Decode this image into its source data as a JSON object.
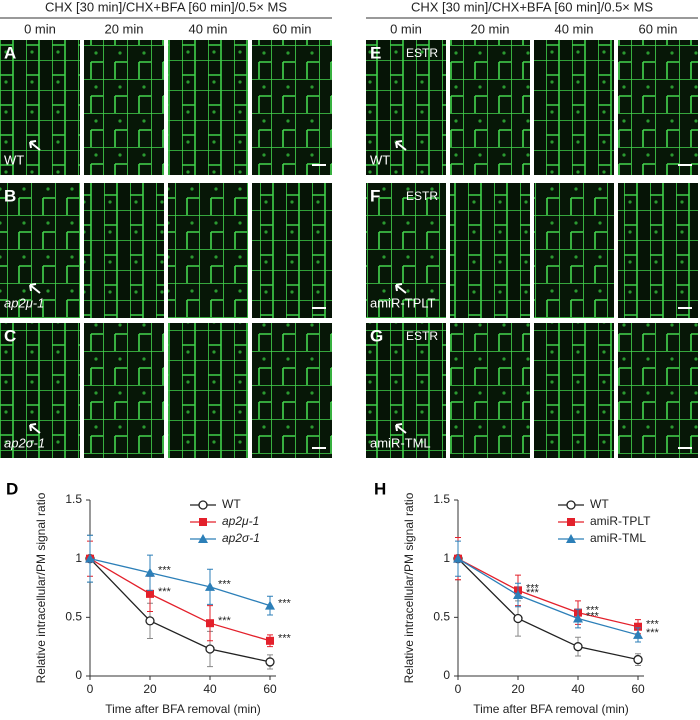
{
  "left": {
    "header": "CHX [30 min]/CHX+BFA [60 min]/0.5× MS",
    "times": [
      "0 min",
      "20 min",
      "40 min",
      "60 min"
    ],
    "panels": [
      {
        "letter": "A",
        "genotype": "WT"
      },
      {
        "letter": "B",
        "genotype": "ap2μ-1"
      },
      {
        "letter": "C",
        "genotype": "ap2σ-1"
      }
    ]
  },
  "right": {
    "header": "CHX [30 min]/CHX+BFA [60 min]/0.5× MS",
    "times": [
      "0 min",
      "20 min",
      "40 min",
      "60 min"
    ],
    "panels": [
      {
        "letter": "E",
        "tag": "ESTR",
        "genotype": "WT"
      },
      {
        "letter": "F",
        "tag": "ESTR",
        "genotype": "amiR-TPLT"
      },
      {
        "letter": "G",
        "tag": "ESTR",
        "genotype": "amiR-TML"
      }
    ]
  },
  "chart_data": [
    {
      "type": "line",
      "panel": "D",
      "x_label": "Time after BFA removal (min)",
      "y_label": "Relative intracellular/PM signal ratio",
      "x": [
        0,
        20,
        40,
        60
      ],
      "xlim": [
        0,
        62
      ],
      "xticks": [
        0,
        20,
        40,
        60
      ],
      "ylim": [
        0,
        1.5
      ],
      "yticks": [
        0,
        0.5,
        1,
        1.5
      ],
      "series": [
        {
          "name": "WT",
          "color": "#222222",
          "marker": "circle",
          "values": [
            1,
            0.47,
            0.23,
            0.12
          ],
          "errors": [
            0.2,
            0.15,
            0.15,
            0.06
          ]
        },
        {
          "name": "ap2μ-1",
          "color": "#e3202b",
          "marker": "square",
          "values": [
            1,
            0.7,
            0.45,
            0.3
          ],
          "errors": [
            0.15,
            0.15,
            0.15,
            0.05
          ],
          "significance": [
            null,
            "***",
            "***",
            "***"
          ]
        },
        {
          "name": "ap2σ-1",
          "color": "#2c7fb8",
          "marker": "triangle",
          "values": [
            1,
            0.88,
            0.76,
            0.6
          ],
          "errors": [
            0.2,
            0.15,
            0.15,
            0.08
          ],
          "significance": [
            null,
            "***",
            "***",
            "***"
          ]
        }
      ]
    },
    {
      "type": "line",
      "panel": "H",
      "x_label": "Time after BFA removal (min)",
      "y_label": "Relative intracellular/PM signal ratio",
      "x": [
        0,
        20,
        40,
        60
      ],
      "xlim": [
        0,
        62
      ],
      "xticks": [
        0,
        20,
        40,
        60
      ],
      "ylim": [
        0,
        1.5
      ],
      "yticks": [
        0,
        0.5,
        1,
        1.5
      ],
      "series": [
        {
          "name": "WT",
          "color": "#222222",
          "marker": "circle",
          "values": [
            1,
            0.49,
            0.25,
            0.14
          ],
          "errors": [
            0.18,
            0.15,
            0.08,
            0.05
          ]
        },
        {
          "name": "amiR-TPLT",
          "color": "#e3202b",
          "marker": "square",
          "values": [
            1,
            0.73,
            0.54,
            0.42
          ],
          "errors": [
            0.18,
            0.13,
            0.1,
            0.06
          ],
          "significance": [
            null,
            "***",
            "***",
            "***"
          ]
        },
        {
          "name": "amiR-TML",
          "color": "#2c7fb8",
          "marker": "triangle",
          "values": [
            1,
            0.69,
            0.49,
            0.35
          ],
          "errors": [
            0.15,
            0.1,
            0.08,
            0.06
          ],
          "significance": [
            null,
            "***",
            "***",
            "***"
          ]
        }
      ]
    }
  ]
}
